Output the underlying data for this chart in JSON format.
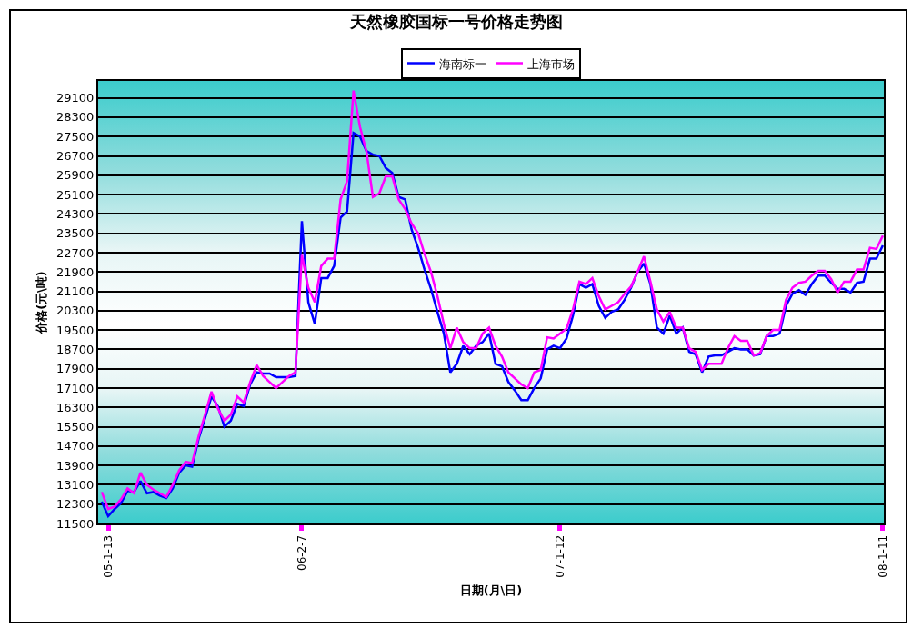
{
  "chart_data": {
    "type": "line",
    "title": "天然橡胶国标一号价格走势图",
    "xlabel": "日期(月\\日)",
    "ylabel": "价格(元\\吨)",
    "categories": [
      null,
      "05-1-13",
      null,
      null,
      null,
      null,
      null,
      null,
      null,
      null,
      null,
      null,
      null,
      null,
      null,
      null,
      null,
      null,
      null,
      null,
      null,
      null,
      null,
      null,
      null,
      null,
      null,
      null,
      null,
      null,
      null,
      "06-2-7",
      null,
      null,
      null,
      null,
      null,
      null,
      null,
      null,
      null,
      null,
      null,
      null,
      null,
      null,
      null,
      null,
      null,
      null,
      null,
      null,
      null,
      null,
      null,
      null,
      null,
      null,
      null,
      null,
      null,
      null,
      null,
      null,
      null,
      null,
      null,
      null,
      null,
      null,
      null,
      "07-1-12",
      null,
      null,
      null,
      null,
      null,
      null,
      null,
      null,
      null,
      null,
      null,
      null,
      null,
      null,
      null,
      null,
      null,
      null,
      null,
      null,
      null,
      null,
      null,
      null,
      null,
      null,
      null,
      null,
      null,
      null,
      null,
      null,
      null,
      null,
      null,
      null,
      null,
      null,
      null,
      null,
      null,
      null,
      null,
      null,
      null,
      null,
      null,
      null,
      null,
      "08-1-11"
    ],
    "series": [
      {
        "name": "海南标一",
        "color": "#0000ff",
        "values": [
          12400,
          11800,
          12100,
          12350,
          12850,
          12800,
          13250,
          12750,
          12800,
          12650,
          12550,
          12950,
          13600,
          13900,
          13850,
          15000,
          15850,
          16750,
          16350,
          15500,
          15750,
          16450,
          16350,
          17250,
          17750,
          17700,
          17700,
          17550,
          17550,
          17550,
          17600,
          24000,
          20650,
          19750,
          21650,
          21650,
          22150,
          24150,
          24400,
          27650,
          27500,
          26900,
          26750,
          26700,
          26200,
          26000,
          25000,
          24900,
          23650,
          22900,
          22000,
          21200,
          20250,
          19350,
          17750,
          18100,
          18850,
          18500,
          18850,
          19000,
          19350,
          18100,
          18000,
          17350,
          17000,
          16600,
          16600,
          17100,
          17500,
          18700,
          18850,
          18750,
          19150,
          20100,
          21400,
          21250,
          21400,
          20500,
          20000,
          20250,
          20350,
          20750,
          21250,
          21900,
          22250,
          21400,
          19600,
          19350,
          20100,
          19350,
          19600,
          18600,
          18500,
          17750,
          18400,
          18450,
          18450,
          18600,
          18750,
          18700,
          18700,
          18450,
          18500,
          19250,
          19250,
          19350,
          20500,
          21000,
          21150,
          20950,
          21400,
          21750,
          21750,
          21450,
          21200,
          21200,
          21050,
          21450,
          21500,
          22450,
          22450,
          23000
        ]
      },
      {
        "name": "上海市场",
        "color": "#ff00ff",
        "values": [
          12800,
          12100,
          12200,
          12500,
          12950,
          12750,
          13600,
          13100,
          12900,
          12750,
          12600,
          13100,
          13700,
          14050,
          14000,
          15100,
          16000,
          16950,
          16250,
          15750,
          16000,
          16750,
          16500,
          17350,
          18050,
          17600,
          17350,
          17100,
          17350,
          17600,
          17750,
          22600,
          21250,
          20650,
          22150,
          22450,
          22450,
          24900,
          25650,
          29400,
          27900,
          26900,
          25000,
          25150,
          25850,
          25850,
          24900,
          24500,
          23900,
          23500,
          22650,
          21900,
          20900,
          19750,
          18750,
          19600,
          19000,
          18750,
          18750,
          19350,
          19600,
          18850,
          18400,
          17750,
          17500,
          17250,
          17100,
          17750,
          17850,
          19200,
          19150,
          19350,
          19550,
          20350,
          21500,
          21400,
          21650,
          20900,
          20350,
          20500,
          20650,
          21000,
          21300,
          21900,
          22550,
          21500,
          20350,
          19850,
          20250,
          19600,
          19600,
          18750,
          18600,
          17850,
          18100,
          18100,
          18100,
          18750,
          19250,
          19050,
          19050,
          18450,
          18550,
          19250,
          19500,
          19500,
          20750,
          21250,
          21450,
          21500,
          21750,
          21950,
          21950,
          21600,
          21050,
          21500,
          21500,
          22000,
          22000,
          22900,
          22850,
          23400
        ]
      }
    ],
    "ylim": [
      11500,
      29800
    ],
    "yticks": [
      11500,
      12300,
      13100,
      13900,
      14700,
      15500,
      16300,
      17100,
      17900,
      18700,
      19500,
      20300,
      21100,
      21900,
      22700,
      23500,
      24300,
      25100,
      25900,
      26700,
      27500,
      28300,
      29100
    ],
    "grid": "y",
    "legend": "top",
    "line_style": "solid",
    "marker": "none"
  }
}
